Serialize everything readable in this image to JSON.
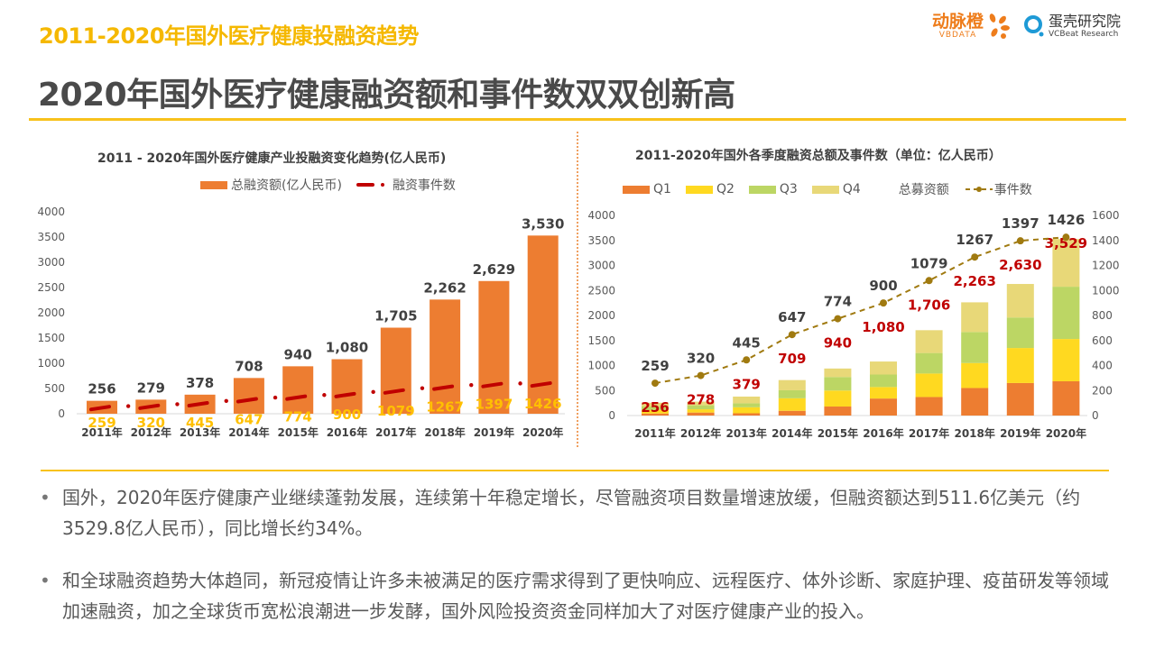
{
  "header": {
    "top_title": "2011-2020年国外医疗健康投融资趋势",
    "main_title": "2020年国外医疗健康融资额和事件数双双创新高",
    "logo1_cn": "动脉橙",
    "logo1_en": "VBDATA",
    "logo2_cn": "蛋壳研究院",
    "logo2_en": "VCBeat Research"
  },
  "colors": {
    "accent_yellow": "#f8c21c",
    "bar_orange": "#ed7d31",
    "event_red": "#c00000",
    "q1": "#ed7d31",
    "q2": "#ffd920",
    "q3": "#bcd664",
    "q4": "#e8d878",
    "event_line_gold": "#a07a10"
  },
  "chart_data": [
    {
      "type": "bar",
      "title": "2011 - 2020年国外医疗健康产业投融资变化趋势(亿人民币)",
      "categories": [
        "2011年",
        "2012年",
        "2013年",
        "2014年",
        "2015年",
        "2016年",
        "2017年",
        "2018年",
        "2019年",
        "2020年"
      ],
      "series": [
        {
          "name": "总融资额(亿人民币)",
          "kind": "bar",
          "values": [
            256,
            279,
            378,
            708,
            940,
            1080,
            1705,
            2262,
            2629,
            3530
          ],
          "labels": [
            "256",
            "279",
            "378",
            "708",
            "940",
            "1,080",
            "1,705",
            "2,262",
            "2,629",
            "3,530"
          ]
        },
        {
          "name": "融资事件数",
          "kind": "line-dashdot",
          "values": [
            259,
            320,
            445,
            647,
            774,
            900,
            1079,
            1267,
            1397,
            1426
          ],
          "labels": [
            "259",
            "320",
            "445",
            "647",
            "774",
            "900",
            "1079",
            "1267",
            "1397",
            "1426"
          ]
        }
      ],
      "yticks": [
        "0",
        "500",
        "1000",
        "1500",
        "2000",
        "2500",
        "3000",
        "3500",
        "4000"
      ],
      "ylim": [
        0,
        4000
      ],
      "legend": [
        "总融资额(亿人民币)",
        "融资事件数"
      ],
      "legend_position": "top",
      "grid": false
    },
    {
      "type": "bar",
      "stacked": true,
      "title": "2011-2020年国外各季度融资总额及事件数（单位：亿人民币）",
      "categories": [
        "2011年",
        "2012年",
        "2013年",
        "2014年",
        "2015年",
        "2016年",
        "2017年",
        "2018年",
        "2019年",
        "2020年"
      ],
      "series": [
        {
          "name": "Q1",
          "values": [
            40,
            60,
            45,
            95,
            180,
            340,
            370,
            550,
            650,
            685
          ]
        },
        {
          "name": "Q2",
          "values": [
            70,
            65,
            120,
            250,
            320,
            230,
            470,
            500,
            700,
            845
          ]
        },
        {
          "name": "Q3",
          "values": [
            70,
            80,
            80,
            160,
            270,
            250,
            410,
            620,
            610,
            1045
          ]
        },
        {
          "name": "Q4",
          "values": [
            76,
            73,
            134,
            204,
            170,
            260,
            456,
            593,
            670,
            954
          ]
        },
        {
          "name": "事件数",
          "kind": "line",
          "axis": "right",
          "values": [
            259,
            320,
            445,
            647,
            774,
            900,
            1079,
            1267,
            1397,
            1426
          ],
          "labels": [
            "259",
            "320",
            "445",
            "647",
            "774",
            "900",
            "1079",
            "1267",
            "1397",
            "1426"
          ]
        }
      ],
      "totals": {
        "name": "总募资额",
        "values": [
          256,
          278,
          379,
          709,
          940,
          1080,
          1706,
          2263,
          2630,
          3529
        ],
        "labels": [
          "256",
          "278",
          "379",
          "709",
          "940",
          "1,080",
          "1,706",
          "2,263",
          "2,630",
          "3,529"
        ]
      },
      "yticks_left": [
        "0",
        "500",
        "1000",
        "1500",
        "2000",
        "2500",
        "3000",
        "3500",
        "4000"
      ],
      "ylim_left": [
        0,
        4000
      ],
      "yticks_right": [
        "0",
        "200",
        "400",
        "600",
        "800",
        "1000",
        "1200",
        "1400",
        "1600"
      ],
      "ylim_right": [
        0,
        1600
      ],
      "legend": [
        "Q1",
        "Q2",
        "Q3",
        "Q4",
        "总募资额",
        "事件数"
      ],
      "legend_position": "top",
      "grid": false
    }
  ],
  "bullets": [
    "国外，2020年医疗健康产业继续蓬勃发展，连续第十年稳定增长，尽管融资项目数量增速放缓，但融资额达到511.6亿美元（约3529.8亿人民币），同比增长约34%。",
    "和全球融资趋势大体趋同，新冠疫情让许多未被满足的医疗需求得到了更快响应、远程医疗、体外诊断、家庭护理、疫苗研发等领域加速融资，加之全球货币宽松浪潮进一步发酵，国外风险投资资金同样加大了对医疗健康产业的投入。"
  ]
}
